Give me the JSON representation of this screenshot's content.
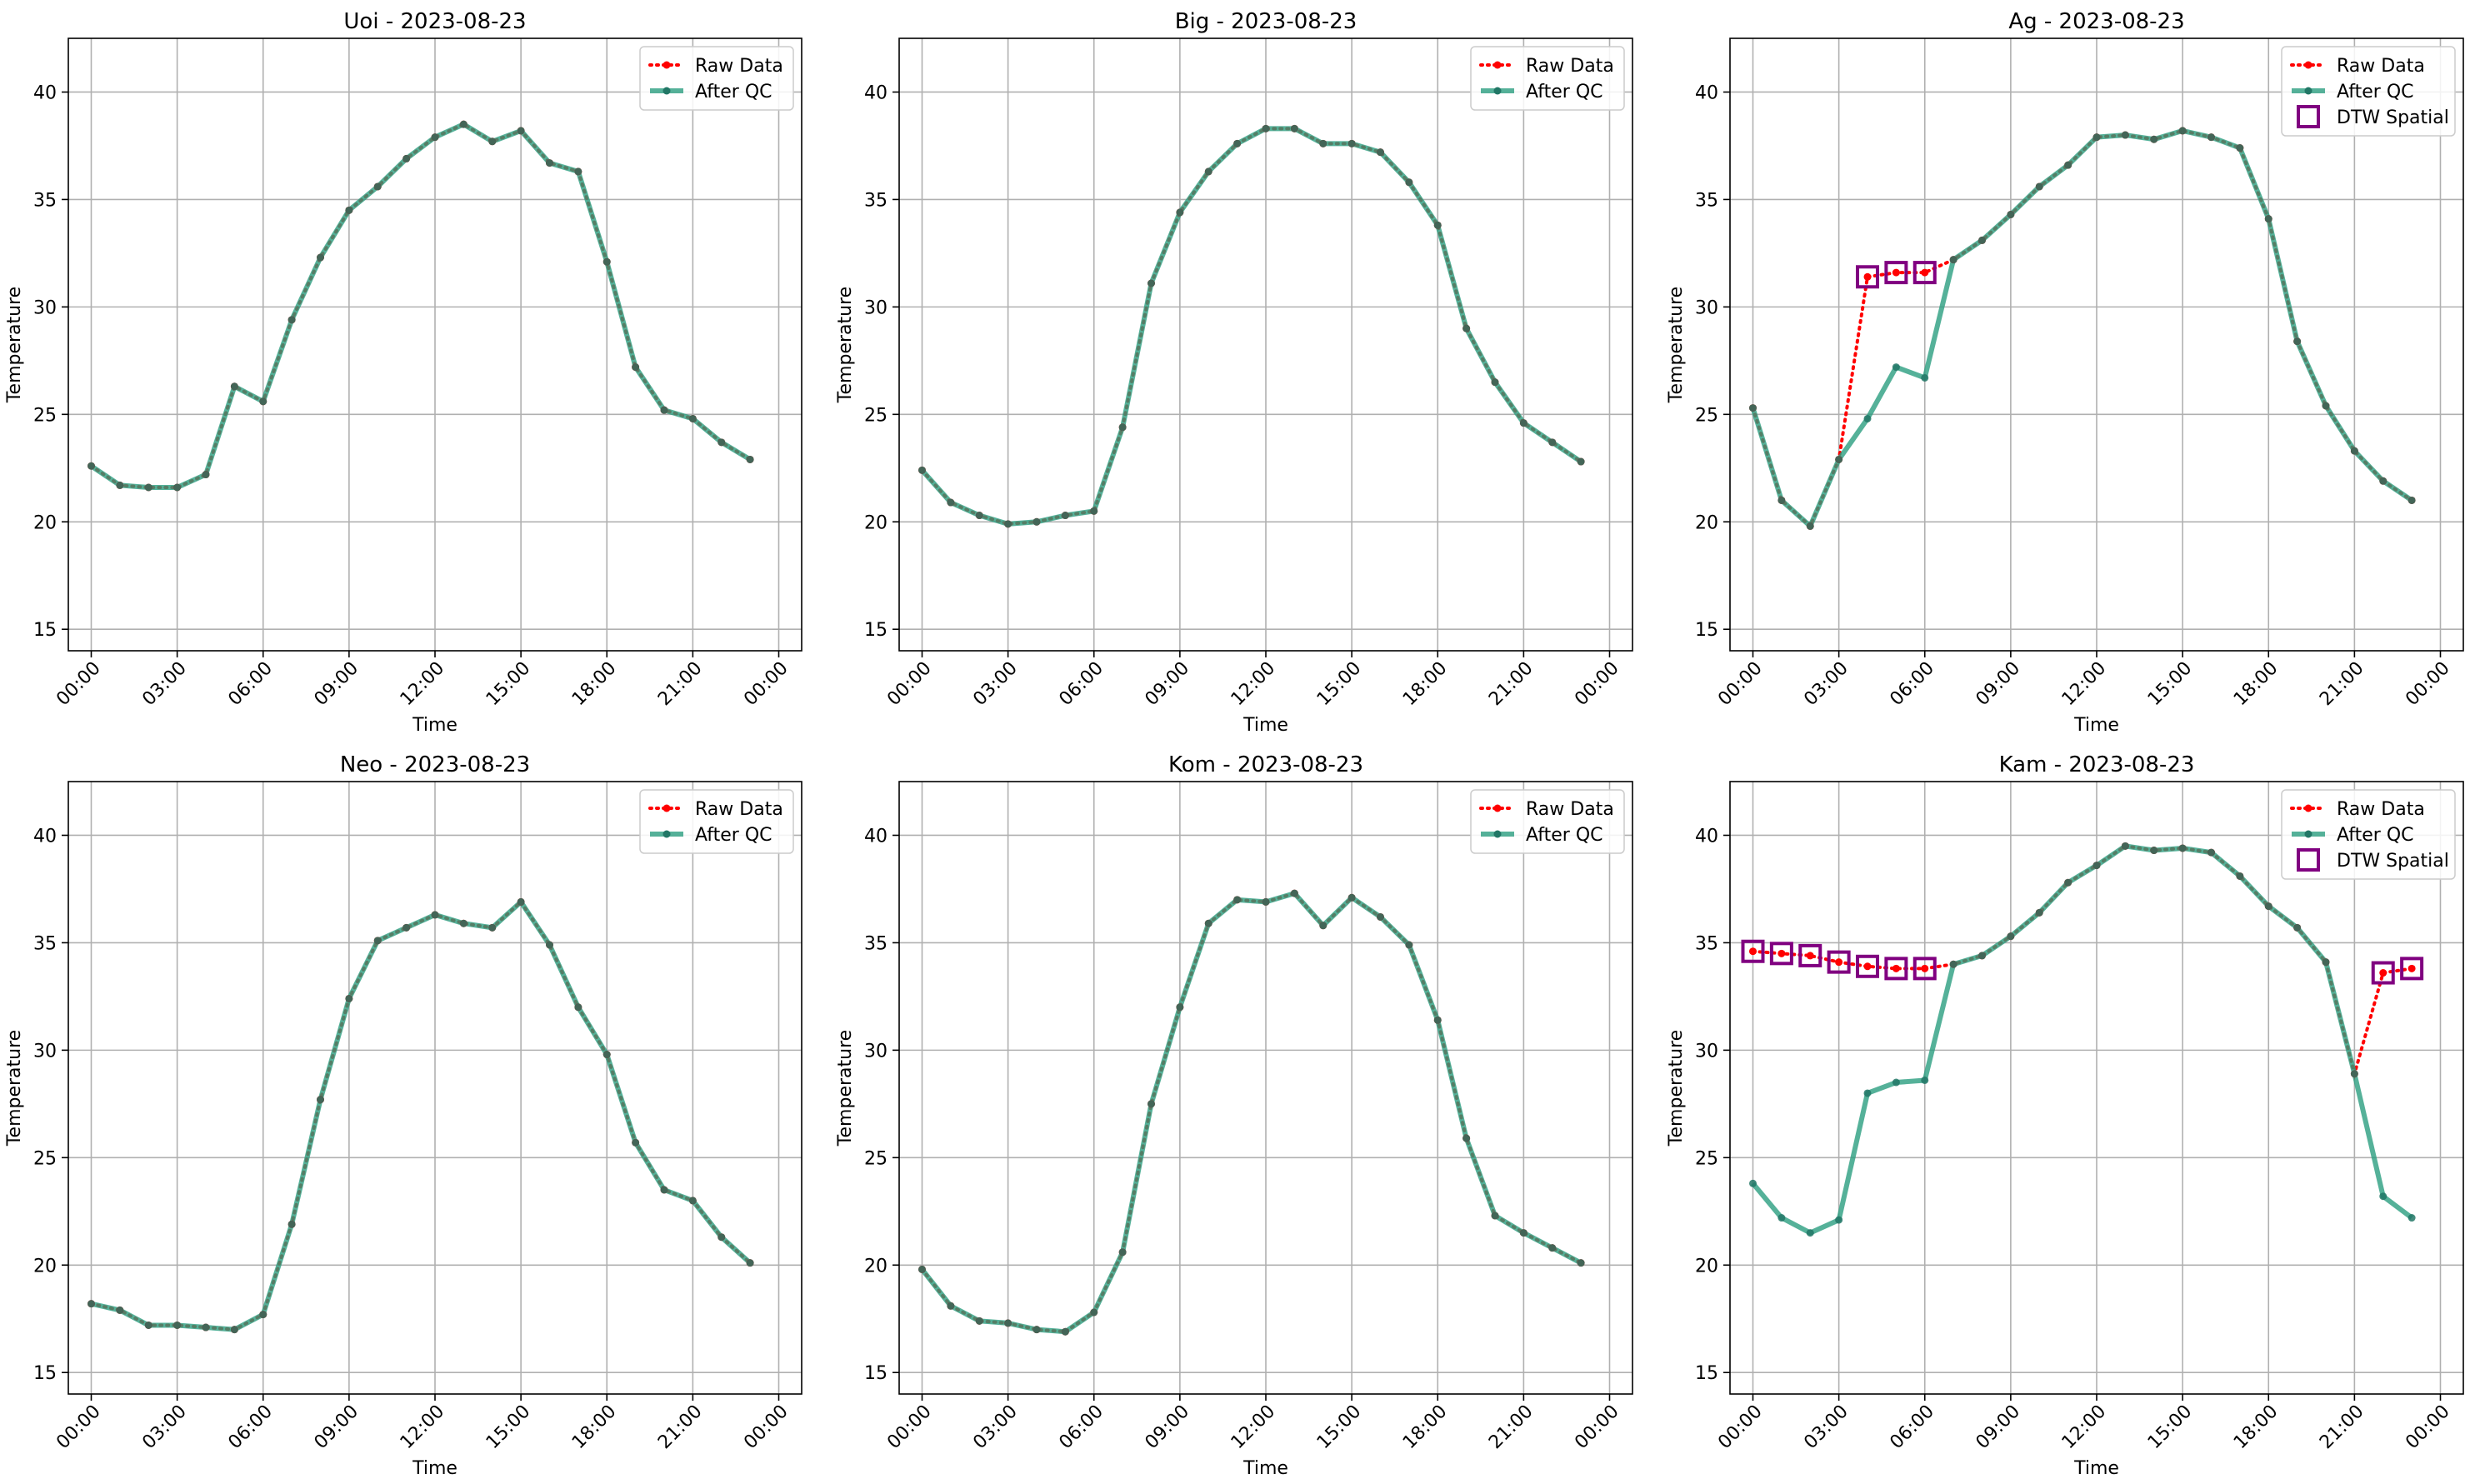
{
  "figure": {
    "background": "#ffffff",
    "colors": {
      "raw": "#ff0000",
      "qc": "#2a9d7f",
      "qc_marker": "#227766",
      "dtw": "#800080",
      "grid": "#b0b0b0",
      "axes": "#000000"
    }
  },
  "chart_data": [
    {
      "type": "line",
      "title": "Uoi - 2023-08-23",
      "xlabel": "Time",
      "ylabel": "Temperature",
      "ylim": [
        14,
        42.5
      ],
      "yticks": [
        15,
        20,
        25,
        30,
        35,
        40
      ],
      "xlim": [
        -0.8,
        24.8
      ],
      "xticks": [
        0,
        3,
        6,
        9,
        12,
        15,
        18,
        21,
        24
      ],
      "xtick_labels": [
        "00:00",
        "03:00",
        "06:00",
        "09:00",
        "12:00",
        "15:00",
        "18:00",
        "21:00",
        "00:00"
      ],
      "grid": true,
      "legend": {
        "placement": "upper-right",
        "entries": [
          "Raw Data",
          "After QC"
        ]
      },
      "x": [
        0,
        1,
        2,
        3,
        4,
        5,
        6,
        7,
        8,
        9,
        10,
        11,
        12,
        13,
        14,
        15,
        16,
        17,
        18,
        19,
        20,
        21,
        22,
        23
      ],
      "series": [
        {
          "name": "Raw Data",
          "style": "dotted-red",
          "values": [
            22.6,
            21.7,
            21.6,
            21.6,
            22.2,
            26.3,
            25.6,
            29.4,
            32.3,
            34.5,
            35.6,
            36.9,
            37.9,
            38.5,
            37.7,
            38.2,
            36.7,
            36.3,
            32.1,
            27.2,
            25.2,
            24.8,
            23.7,
            22.9
          ]
        },
        {
          "name": "After QC",
          "style": "solid-green",
          "values": [
            22.6,
            21.7,
            21.6,
            21.6,
            22.2,
            26.3,
            25.6,
            29.4,
            32.3,
            34.5,
            35.6,
            36.9,
            37.9,
            38.5,
            37.7,
            38.2,
            36.7,
            36.3,
            32.1,
            27.2,
            25.2,
            24.8,
            23.7,
            22.9
          ]
        }
      ]
    },
    {
      "type": "line",
      "title": "Big - 2023-08-23",
      "xlabel": "Time",
      "ylabel": "Temperature",
      "ylim": [
        14,
        42.5
      ],
      "yticks": [
        15,
        20,
        25,
        30,
        35,
        40
      ],
      "xlim": [
        -0.8,
        24.8
      ],
      "xticks": [
        0,
        3,
        6,
        9,
        12,
        15,
        18,
        21,
        24
      ],
      "xtick_labels": [
        "00:00",
        "03:00",
        "06:00",
        "09:00",
        "12:00",
        "15:00",
        "18:00",
        "21:00",
        "00:00"
      ],
      "grid": true,
      "legend": {
        "placement": "upper-right",
        "entries": [
          "Raw Data",
          "After QC"
        ]
      },
      "x": [
        0,
        1,
        2,
        3,
        4,
        5,
        6,
        7,
        8,
        9,
        10,
        11,
        12,
        13,
        14,
        15,
        16,
        17,
        18,
        19,
        20,
        21,
        22,
        23
      ],
      "series": [
        {
          "name": "Raw Data",
          "style": "dotted-red",
          "values": [
            22.4,
            20.9,
            20.3,
            19.9,
            20.0,
            20.3,
            20.5,
            24.4,
            31.1,
            34.4,
            36.3,
            37.6,
            38.3,
            38.3,
            37.6,
            37.6,
            37.2,
            35.8,
            33.8,
            29.0,
            26.5,
            24.6,
            23.7,
            22.8
          ]
        },
        {
          "name": "After QC",
          "style": "solid-green",
          "values": [
            22.4,
            20.9,
            20.3,
            19.9,
            20.0,
            20.3,
            20.5,
            24.4,
            31.1,
            34.4,
            36.3,
            37.6,
            38.3,
            38.3,
            37.6,
            37.6,
            37.2,
            35.8,
            33.8,
            29.0,
            26.5,
            24.6,
            23.7,
            22.8
          ]
        }
      ]
    },
    {
      "type": "line",
      "title": "Ag - 2023-08-23",
      "xlabel": "Time",
      "ylabel": "Temperature",
      "ylim": [
        14,
        42.5
      ],
      "yticks": [
        15,
        20,
        25,
        30,
        35,
        40
      ],
      "xlim": [
        -0.8,
        24.8
      ],
      "xticks": [
        0,
        3,
        6,
        9,
        12,
        15,
        18,
        21,
        24
      ],
      "xtick_labels": [
        "00:00",
        "03:00",
        "06:00",
        "09:00",
        "12:00",
        "15:00",
        "18:00",
        "21:00",
        "00:00"
      ],
      "grid": true,
      "legend": {
        "placement": "upper-right",
        "entries": [
          "Raw Data",
          "After QC",
          "DTW Spatial"
        ]
      },
      "x": [
        0,
        1,
        2,
        3,
        4,
        5,
        6,
        7,
        8,
        9,
        10,
        11,
        12,
        13,
        14,
        15,
        16,
        17,
        18,
        19,
        20,
        21,
        22,
        23
      ],
      "series": [
        {
          "name": "Raw Data",
          "style": "dotted-red",
          "values": [
            25.3,
            21.0,
            19.8,
            22.9,
            31.4,
            31.6,
            31.6,
            32.2,
            33.1,
            34.3,
            35.6,
            36.6,
            37.9,
            38.0,
            37.8,
            38.2,
            37.9,
            37.4,
            34.1,
            28.4,
            25.4,
            23.3,
            21.9,
            21.0
          ]
        },
        {
          "name": "After QC",
          "style": "solid-green",
          "values": [
            25.3,
            21.0,
            19.8,
            22.9,
            24.8,
            27.2,
            26.7,
            32.2,
            33.1,
            34.3,
            35.6,
            36.6,
            37.9,
            38.0,
            37.8,
            38.2,
            37.9,
            37.4,
            34.1,
            28.4,
            25.4,
            23.3,
            21.9,
            21.0
          ]
        }
      ],
      "dtw_points": [
        {
          "x": 4,
          "y": 31.4
        },
        {
          "x": 5,
          "y": 31.6
        },
        {
          "x": 6,
          "y": 31.6
        }
      ]
    },
    {
      "type": "line",
      "title": "Neo - 2023-08-23",
      "xlabel": "Time",
      "ylabel": "Temperature",
      "ylim": [
        14,
        42.5
      ],
      "yticks": [
        15,
        20,
        25,
        30,
        35,
        40
      ],
      "xlim": [
        -0.8,
        24.8
      ],
      "xticks": [
        0,
        3,
        6,
        9,
        12,
        15,
        18,
        21,
        24
      ],
      "xtick_labels": [
        "00:00",
        "03:00",
        "06:00",
        "09:00",
        "12:00",
        "15:00",
        "18:00",
        "21:00",
        "00:00"
      ],
      "grid": true,
      "legend": {
        "placement": "upper-right",
        "entries": [
          "Raw Data",
          "After QC"
        ]
      },
      "x": [
        0,
        1,
        2,
        3,
        4,
        5,
        6,
        7,
        8,
        9,
        10,
        11,
        12,
        13,
        14,
        15,
        16,
        17,
        18,
        19,
        20,
        21,
        22,
        23
      ],
      "series": [
        {
          "name": "Raw Data",
          "style": "dotted-red",
          "values": [
            18.2,
            17.9,
            17.2,
            17.2,
            17.1,
            17.0,
            17.7,
            21.9,
            27.7,
            32.4,
            35.1,
            35.7,
            36.3,
            35.9,
            35.7,
            36.9,
            34.9,
            32.0,
            29.8,
            25.7,
            23.5,
            23.0,
            21.3,
            20.1
          ]
        },
        {
          "name": "After QC",
          "style": "solid-green",
          "values": [
            18.2,
            17.9,
            17.2,
            17.2,
            17.1,
            17.0,
            17.7,
            21.9,
            27.7,
            32.4,
            35.1,
            35.7,
            36.3,
            35.9,
            35.7,
            36.9,
            34.9,
            32.0,
            29.8,
            25.7,
            23.5,
            23.0,
            21.3,
            20.1
          ]
        }
      ]
    },
    {
      "type": "line",
      "title": "Kom - 2023-08-23",
      "xlabel": "Time",
      "ylabel": "Temperature",
      "ylim": [
        14,
        42.5
      ],
      "yticks": [
        15,
        20,
        25,
        30,
        35,
        40
      ],
      "xlim": [
        -0.8,
        24.8
      ],
      "xticks": [
        0,
        3,
        6,
        9,
        12,
        15,
        18,
        21,
        24
      ],
      "xtick_labels": [
        "00:00",
        "03:00",
        "06:00",
        "09:00",
        "12:00",
        "15:00",
        "18:00",
        "21:00",
        "00:00"
      ],
      "grid": true,
      "legend": {
        "placement": "upper-right",
        "entries": [
          "Raw Data",
          "After QC"
        ]
      },
      "x": [
        0,
        1,
        2,
        3,
        4,
        5,
        6,
        7,
        8,
        9,
        10,
        11,
        12,
        13,
        14,
        15,
        16,
        17,
        18,
        19,
        20,
        21,
        22,
        23
      ],
      "series": [
        {
          "name": "Raw Data",
          "style": "dotted-red",
          "values": [
            19.8,
            18.1,
            17.4,
            17.3,
            17.0,
            16.9,
            17.8,
            20.6,
            27.5,
            32.0,
            35.9,
            37.0,
            36.9,
            37.3,
            35.8,
            37.1,
            36.2,
            34.9,
            31.4,
            25.9,
            22.3,
            21.5,
            20.8,
            20.1
          ]
        },
        {
          "name": "After QC",
          "style": "solid-green",
          "values": [
            19.8,
            18.1,
            17.4,
            17.3,
            17.0,
            16.9,
            17.8,
            20.6,
            27.5,
            32.0,
            35.9,
            37.0,
            36.9,
            37.3,
            35.8,
            37.1,
            36.2,
            34.9,
            31.4,
            25.9,
            22.3,
            21.5,
            20.8,
            20.1
          ]
        }
      ]
    },
    {
      "type": "line",
      "title": "Kam - 2023-08-23",
      "xlabel": "Time",
      "ylabel": "Temperature",
      "ylim": [
        14,
        42.5
      ],
      "yticks": [
        15,
        20,
        25,
        30,
        35,
        40
      ],
      "xlim": [
        -0.8,
        24.8
      ],
      "xticks": [
        0,
        3,
        6,
        9,
        12,
        15,
        18,
        21,
        24
      ],
      "xtick_labels": [
        "00:00",
        "03:00",
        "06:00",
        "09:00",
        "12:00",
        "15:00",
        "18:00",
        "21:00",
        "00:00"
      ],
      "grid": true,
      "legend": {
        "placement": "upper-right",
        "entries": [
          "Raw Data",
          "After QC",
          "DTW Spatial"
        ]
      },
      "x": [
        0,
        1,
        2,
        3,
        4,
        5,
        6,
        7,
        8,
        9,
        10,
        11,
        12,
        13,
        14,
        15,
        16,
        17,
        18,
        19,
        20,
        21,
        22,
        23
      ],
      "series": [
        {
          "name": "Raw Data",
          "style": "dotted-red",
          "values": [
            34.6,
            34.5,
            34.4,
            34.1,
            33.9,
            33.8,
            33.8,
            34.0,
            34.4,
            35.3,
            36.4,
            37.8,
            38.6,
            39.5,
            39.3,
            39.4,
            39.2,
            38.1,
            36.7,
            35.7,
            34.1,
            28.9,
            33.6,
            33.8
          ]
        },
        {
          "name": "After QC",
          "style": "solid-green",
          "values": [
            23.8,
            22.2,
            21.5,
            22.1,
            28.0,
            28.5,
            28.6,
            34.0,
            34.4,
            35.3,
            36.4,
            37.8,
            38.6,
            39.5,
            39.3,
            39.4,
            39.2,
            38.1,
            36.7,
            35.7,
            34.1,
            28.9,
            23.2,
            22.2
          ]
        }
      ],
      "dtw_points": [
        {
          "x": 0,
          "y": 34.6
        },
        {
          "x": 1,
          "y": 34.5
        },
        {
          "x": 2,
          "y": 34.4
        },
        {
          "x": 3,
          "y": 34.1
        },
        {
          "x": 4,
          "y": 33.9
        },
        {
          "x": 5,
          "y": 33.8
        },
        {
          "x": 6,
          "y": 33.8
        },
        {
          "x": 22,
          "y": 33.6
        },
        {
          "x": 23,
          "y": 33.8
        }
      ]
    }
  ]
}
